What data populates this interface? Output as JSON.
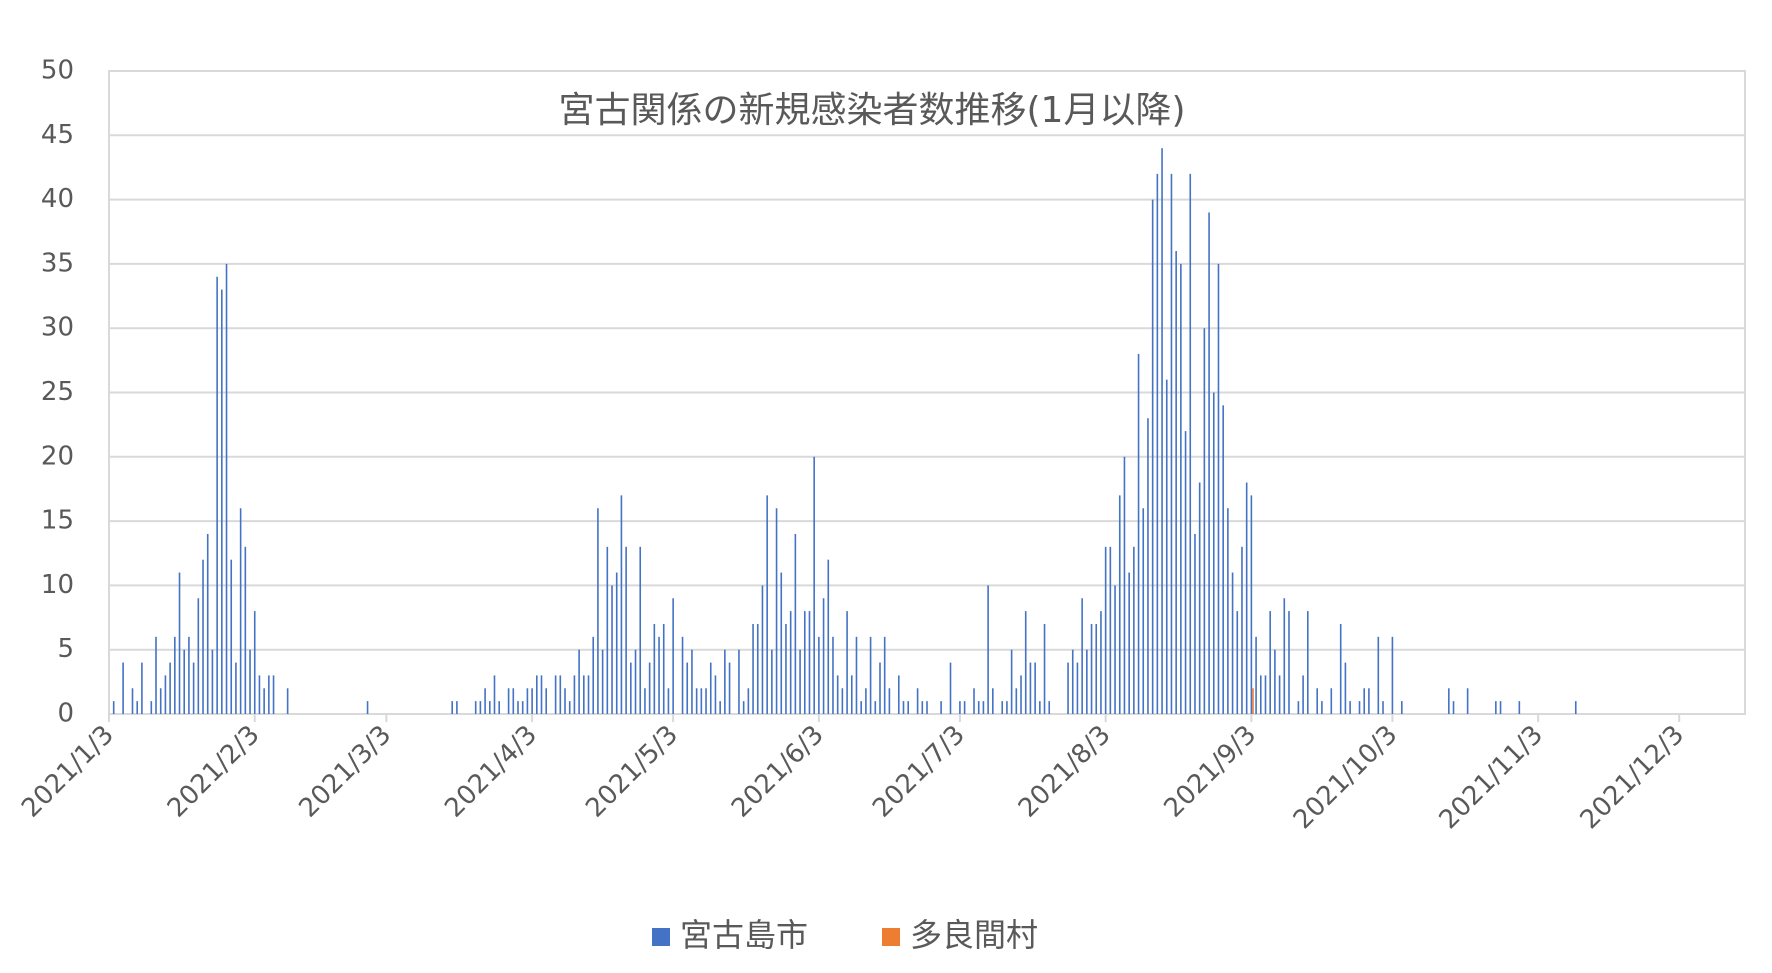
{
  "chart_data": {
    "type": "bar",
    "title": "宮古関係の新規感染者数推移(1月以降)",
    "xlim": [
      "2021/1/3",
      "2021/12/17"
    ],
    "xticks": [
      "2021/1/3",
      "2021/2/3",
      "2021/3/3",
      "2021/4/3",
      "2021/5/3",
      "2021/6/3",
      "2021/7/3",
      "2021/8/3",
      "2021/9/3",
      "2021/10/3",
      "2021/11/3",
      "2021/12/3"
    ],
    "ylim": [
      0,
      50
    ],
    "yticks": [
      0,
      5,
      10,
      15,
      20,
      25,
      30,
      35,
      40,
      45,
      50
    ],
    "grid": true,
    "legend": "bottom",
    "series": [
      {
        "name": "宮古島市",
        "color": "#4472c4",
        "x": [
          "2021/1/4",
          "2021/1/6",
          "2021/1/8",
          "2021/1/9",
          "2021/1/10",
          "2021/1/12",
          "2021/1/13",
          "2021/1/14",
          "2021/1/15",
          "2021/1/16",
          "2021/1/17",
          "2021/1/18",
          "2021/1/19",
          "2021/1/20",
          "2021/1/21",
          "2021/1/22",
          "2021/1/23",
          "2021/1/24",
          "2021/1/25",
          "2021/1/26",
          "2021/1/27",
          "2021/1/28",
          "2021/1/29",
          "2021/1/30",
          "2021/1/31",
          "2021/2/1",
          "2021/2/2",
          "2021/2/3",
          "2021/2/4",
          "2021/2/5",
          "2021/2/6",
          "2021/2/7",
          "2021/2/10",
          "2021/2/27",
          "2021/3/17",
          "2021/3/18",
          "2021/3/22",
          "2021/3/23",
          "2021/3/24",
          "2021/3/25",
          "2021/3/26",
          "2021/3/27",
          "2021/3/29",
          "2021/3/30",
          "2021/3/31",
          "2021/4/1",
          "2021/4/2",
          "2021/4/3",
          "2021/4/4",
          "2021/4/5",
          "2021/4/6",
          "2021/4/8",
          "2021/4/9",
          "2021/4/10",
          "2021/4/11",
          "2021/4/12",
          "2021/4/13",
          "2021/4/14",
          "2021/4/15",
          "2021/4/16",
          "2021/4/17",
          "2021/4/18",
          "2021/4/19",
          "2021/4/20",
          "2021/4/21",
          "2021/4/22",
          "2021/4/23",
          "2021/4/24",
          "2021/4/25",
          "2021/4/26",
          "2021/4/27",
          "2021/4/28",
          "2021/4/29",
          "2021/4/30",
          "2021/5/1",
          "2021/5/2",
          "2021/5/3",
          "2021/5/5",
          "2021/5/6",
          "2021/5/7",
          "2021/5/8",
          "2021/5/9",
          "2021/5/10",
          "2021/5/11",
          "2021/5/12",
          "2021/5/13",
          "2021/5/14",
          "2021/5/15",
          "2021/5/17",
          "2021/5/18",
          "2021/5/19",
          "2021/5/20",
          "2021/5/21",
          "2021/5/22",
          "2021/5/23",
          "2021/5/24",
          "2021/5/25",
          "2021/5/26",
          "2021/5/27",
          "2021/5/28",
          "2021/5/29",
          "2021/5/30",
          "2021/5/31",
          "2021/6/1",
          "2021/6/2",
          "2021/6/3",
          "2021/6/4",
          "2021/6/5",
          "2021/6/6",
          "2021/6/7",
          "2021/6/8",
          "2021/6/9",
          "2021/6/10",
          "2021/6/11",
          "2021/6/12",
          "2021/6/13",
          "2021/6/14",
          "2021/6/15",
          "2021/6/16",
          "2021/6/17",
          "2021/6/18",
          "2021/6/20",
          "2021/6/21",
          "2021/6/22",
          "2021/6/24",
          "2021/6/25",
          "2021/6/26",
          "2021/6/29",
          "2021/7/1",
          "2021/7/3",
          "2021/7/4",
          "2021/7/6",
          "2021/7/7",
          "2021/7/8",
          "2021/7/9",
          "2021/7/10",
          "2021/7/12",
          "2021/7/13",
          "2021/7/14",
          "2021/7/15",
          "2021/7/16",
          "2021/7/17",
          "2021/7/18",
          "2021/7/19",
          "2021/7/20",
          "2021/7/21",
          "2021/7/22",
          "2021/7/26",
          "2021/7/27",
          "2021/7/28",
          "2021/7/29",
          "2021/7/30",
          "2021/7/31",
          "2021/8/1",
          "2021/8/2",
          "2021/8/3",
          "2021/8/4",
          "2021/8/5",
          "2021/8/6",
          "2021/8/7",
          "2021/8/8",
          "2021/8/9",
          "2021/8/10",
          "2021/8/11",
          "2021/8/12",
          "2021/8/13",
          "2021/8/14",
          "2021/8/15",
          "2021/8/16",
          "2021/8/17",
          "2021/8/18",
          "2021/8/19",
          "2021/8/20",
          "2021/8/21",
          "2021/8/22",
          "2021/8/23",
          "2021/8/24",
          "2021/8/25",
          "2021/8/26",
          "2021/8/27",
          "2021/8/28",
          "2021/8/29",
          "2021/8/30",
          "2021/8/31",
          "2021/9/1",
          "2021/9/2",
          "2021/9/3",
          "2021/9/4",
          "2021/9/5",
          "2021/9/6",
          "2021/9/7",
          "2021/9/8",
          "2021/9/9",
          "2021/9/10",
          "2021/9/11",
          "2021/9/13",
          "2021/9/14",
          "2021/9/15",
          "2021/9/17",
          "2021/9/18",
          "2021/9/20",
          "2021/9/22",
          "2021/9/23",
          "2021/9/24",
          "2021/9/26",
          "2021/9/27",
          "2021/9/28",
          "2021/9/30",
          "2021/10/1",
          "2021/10/3",
          "2021/10/5",
          "2021/10/15",
          "2021/10/16",
          "2021/10/19",
          "2021/10/25",
          "2021/10/26",
          "2021/10/30",
          "2021/11/11"
        ],
        "values": [
          1,
          4,
          2,
          1,
          4,
          1,
          6,
          2,
          3,
          4,
          6,
          11,
          5,
          6,
          4,
          9,
          12,
          14,
          5,
          34,
          33,
          35,
          12,
          4,
          16,
          13,
          5,
          8,
          3,
          2,
          3,
          3,
          2,
          1,
          1,
          1,
          1,
          1,
          2,
          1,
          3,
          1,
          2,
          2,
          1,
          1,
          2,
          2,
          3,
          3,
          2,
          3,
          3,
          2,
          1,
          3,
          5,
          3,
          3,
          6,
          16,
          5,
          13,
          10,
          11,
          17,
          13,
          4,
          5,
          13,
          2,
          4,
          7,
          6,
          7,
          2,
          9,
          6,
          4,
          5,
          2,
          2,
          2,
          4,
          3,
          1,
          5,
          4,
          5,
          1,
          2,
          7,
          7,
          10,
          17,
          5,
          16,
          11,
          7,
          8,
          14,
          5,
          8,
          8,
          20,
          6,
          9,
          12,
          6,
          3,
          2,
          8,
          3,
          6,
          1,
          2,
          6,
          1,
          4,
          6,
          2,
          3,
          1,
          1,
          2,
          1,
          1,
          1,
          4,
          1,
          1,
          2,
          1,
          1,
          10,
          2,
          1,
          1,
          5,
          2,
          3,
          8,
          4,
          4,
          1,
          7,
          1,
          4,
          5,
          4,
          9,
          5,
          7,
          7,
          8,
          13,
          13,
          10,
          17,
          20,
          11,
          13,
          28,
          16,
          23,
          40,
          42,
          44,
          26,
          42,
          36,
          35,
          22,
          42,
          14,
          18,
          30,
          39,
          25,
          35,
          24,
          16,
          11,
          8,
          13,
          18,
          17,
          6,
          3,
          3,
          8,
          5,
          3,
          9,
          8,
          1,
          3,
          8,
          2,
          1,
          2,
          7,
          4,
          1,
          1,
          2,
          2,
          6,
          1,
          6,
          1,
          2,
          1,
          2,
          1,
          1,
          1,
          1
        ]
      },
      {
        "name": "多良間村",
        "color": "#ed7d31",
        "x": [
          "2021/9/3"
        ],
        "values": [
          2
        ]
      }
    ]
  }
}
